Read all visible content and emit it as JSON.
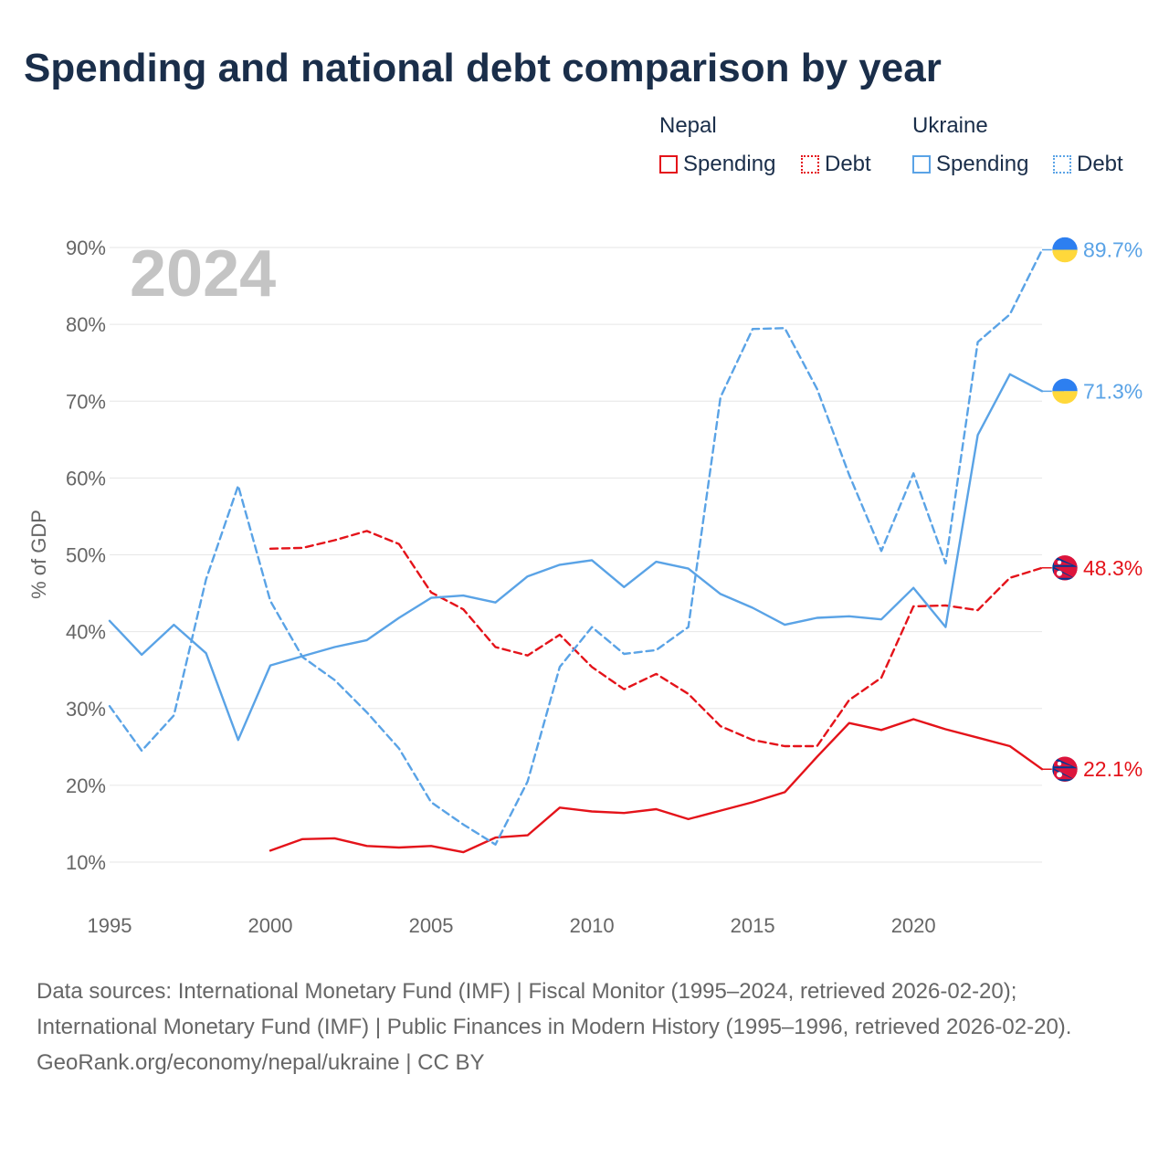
{
  "title": "Spending and national debt comparison by year",
  "legend": {
    "groups": [
      {
        "country": "Nepal",
        "spending_label": "Spending",
        "debt_label": "Debt",
        "color": "#e4131a"
      },
      {
        "country": "Ukraine",
        "spending_label": "Spending",
        "debt_label": "Debt",
        "color": "#5aa3e6"
      }
    ]
  },
  "footer": {
    "sources": "Data sources: International Monetary Fund (IMF) | Fiscal Monitor (1995–2024, retrieved 2026-02-20); International Monetary Fund (IMF) | Public Finances in Modern History (1995–1996, retrieved 2026-02-20).",
    "credit": "GeoRank.org/economy/nepal/ukraine | CC BY"
  },
  "chart_data": {
    "type": "line",
    "title": "Spending and national debt comparison by year",
    "year_label": "2024",
    "ylabel": "% of GDP",
    "xlabel": "",
    "xlim": [
      1995,
      2024
    ],
    "ylim": [
      10,
      90
    ],
    "x_ticks": [
      "1995",
      "2000",
      "2005",
      "2010",
      "2015",
      "2020"
    ],
    "y_ticks": [
      "10%",
      "20%",
      "30%",
      "40%",
      "50%",
      "60%",
      "70%",
      "80%",
      "90%"
    ],
    "grid": true,
    "series": [
      {
        "name": "Nepal Spending",
        "country": "Nepal",
        "metric": "Spending",
        "color": "#e4131a",
        "dash": false,
        "start_year": 2000,
        "values": [
          11.5,
          13.0,
          13.1,
          12.1,
          11.9,
          12.1,
          11.3,
          13.2,
          13.5,
          17.1,
          16.6,
          16.4,
          16.9,
          15.6,
          16.7,
          17.8,
          19.1,
          23.7,
          28.1,
          27.2,
          28.6,
          27.3,
          26.2,
          25.1,
          22.1
        ],
        "end_label": "22.1%"
      },
      {
        "name": "Nepal Debt",
        "country": "Nepal",
        "metric": "Debt",
        "color": "#e4131a",
        "dash": true,
        "start_year": 2000,
        "values": [
          50.8,
          50.9,
          51.9,
          53.1,
          51.4,
          45.1,
          42.9,
          38.0,
          36.9,
          39.6,
          35.4,
          32.5,
          34.5,
          31.9,
          27.7,
          25.9,
          25.1,
          25.1,
          31.1,
          34.0,
          43.3,
          43.4,
          42.8,
          47.0,
          48.3
        ],
        "end_label": "48.3%"
      },
      {
        "name": "Ukraine Spending",
        "country": "Ukraine",
        "metric": "Spending",
        "color": "#5aa3e6",
        "dash": false,
        "start_year": 1995,
        "values": [
          41.4,
          37.0,
          40.9,
          37.2,
          25.9,
          35.6,
          36.8,
          38.0,
          38.9,
          41.8,
          44.4,
          44.7,
          43.8,
          47.2,
          48.7,
          49.3,
          45.8,
          49.1,
          48.2,
          44.9,
          43.1,
          40.9,
          41.8,
          42.0,
          41.6,
          45.7,
          40.6,
          65.6,
          73.5,
          71.3
        ],
        "end_label": "71.3%"
      },
      {
        "name": "Ukraine Debt",
        "country": "Ukraine",
        "metric": "Debt",
        "color": "#5aa3e6",
        "dash": true,
        "start_year": 1995,
        "values": [
          30.3,
          24.5,
          29.1,
          46.8,
          59.0,
          44.0,
          36.7,
          33.7,
          29.5,
          24.8,
          17.8,
          14.9,
          12.3,
          20.5,
          35.4,
          40.6,
          37.1,
          37.6,
          40.6,
          70.5,
          79.4,
          79.5,
          71.6,
          60.4,
          50.5,
          60.6,
          48.9,
          77.7,
          81.3,
          89.7
        ],
        "end_label": "89.7%"
      }
    ]
  }
}
